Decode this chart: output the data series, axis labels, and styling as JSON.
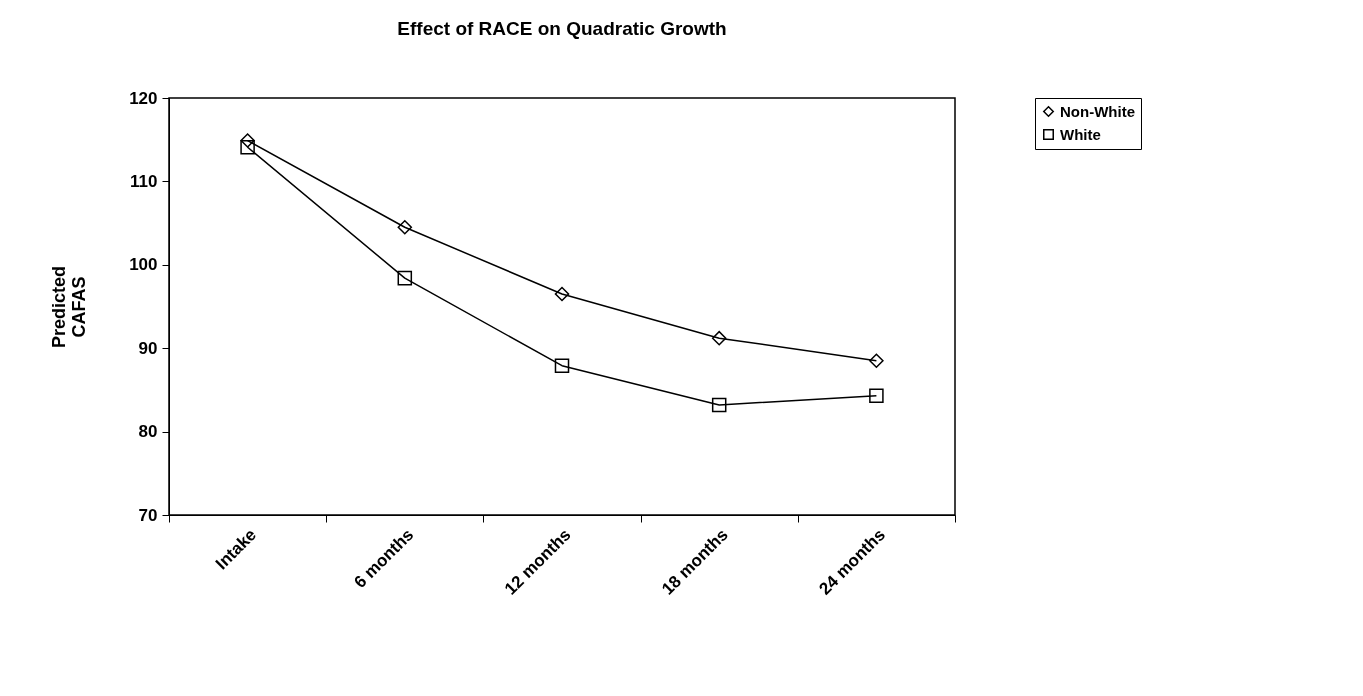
{
  "chart_data": {
    "type": "line",
    "title": "Effect of RACE on Quadratic Growth",
    "ylabel": "Predicted CAFAS",
    "categories": [
      "Intake",
      "6 months",
      "12 months",
      "18 months",
      "24 months"
    ],
    "series": [
      {
        "name": "Non-White",
        "color": "#000000",
        "marker": "diamond",
        "values": [
          114.9,
          104.5,
          96.5,
          91.2,
          88.5
        ]
      },
      {
        "name": "White",
        "color": "#000000",
        "marker": "square",
        "values": [
          114.1,
          98.4,
          87.9,
          83.2,
          84.3
        ]
      }
    ],
    "ylim": [
      70,
      120
    ],
    "yticks": [
      70,
      80,
      90,
      100,
      110,
      120
    ],
    "grid": false,
    "legend": "right",
    "line_style": "solid"
  }
}
